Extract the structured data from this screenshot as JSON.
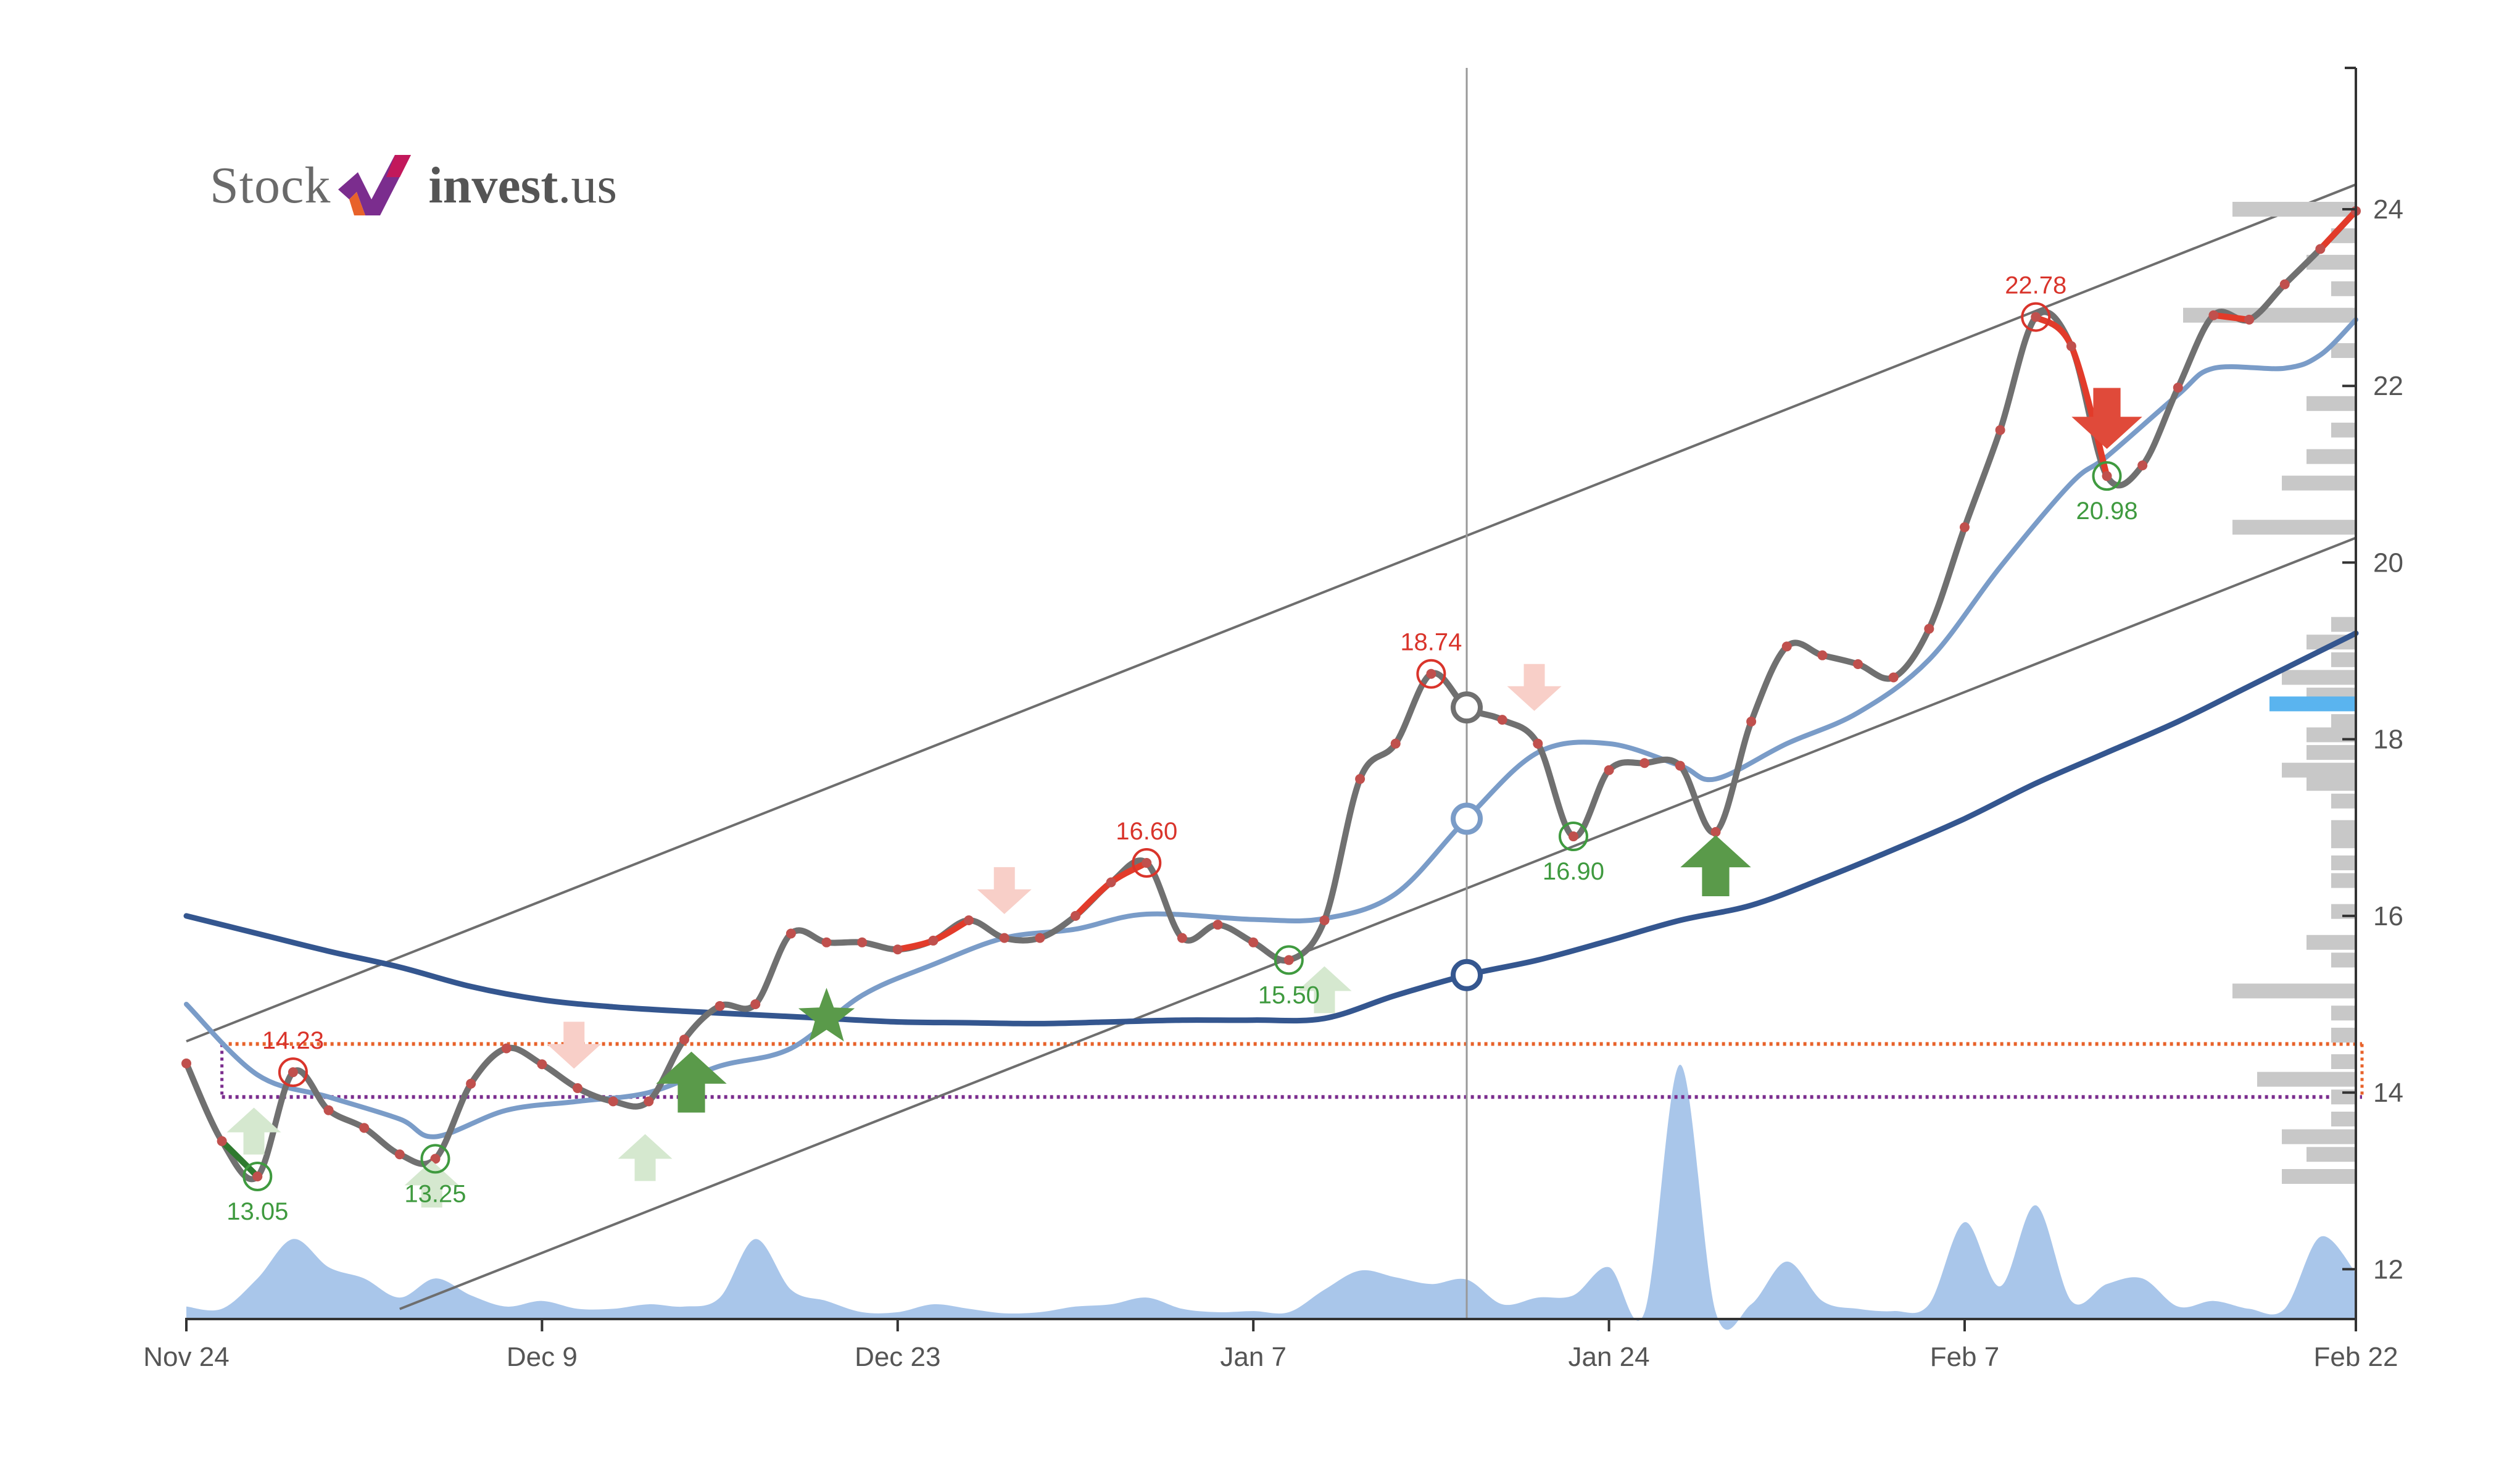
{
  "logo": {
    "word1": "Stock",
    "word2": "invest",
    "word3": ".us"
  },
  "colors": {
    "price_line": "#707070",
    "price_dot": "#c0504d",
    "red_segment": "#e23b2a",
    "short_ma": "#7a9cc8",
    "long_ma": "#34568f",
    "volume": "#a9c6ea",
    "channel": "#6e6e6e",
    "profile_bar": "#c8c8c8",
    "profile_highlight": "#5ab4ef",
    "support_orange": "#e8622a",
    "support_purple": "#7b2d8e",
    "buy": "#5a9a4a",
    "sell": "#e04a3a",
    "buy_faint": "#d5e8cf",
    "sell_faint": "#f8cfc8",
    "top_label": "#d9342b",
    "bottom_label": "#3f9a3f"
  },
  "chart_data": {
    "type": "line",
    "x_labels": [
      "Nov 24",
      "Dec 9",
      "Dec 23",
      "Jan 7",
      "Jan 24",
      "Feb 7",
      "Feb 22"
    ],
    "y_ticks": [
      "12",
      "14",
      "16",
      "18",
      "20",
      "22",
      "24"
    ],
    "ylim": [
      11.45,
      25.6
    ],
    "xlim": [
      0,
      61
    ],
    "x_label_positions": [
      0,
      10,
      20,
      30,
      40,
      50,
      61
    ],
    "series": [
      {
        "values": [
          [
            0,
            14.33
          ],
          [
            1,
            13.45
          ],
          [
            2,
            13.05
          ],
          [
            3,
            14.23
          ],
          [
            4,
            13.8
          ],
          [
            5,
            13.6
          ],
          [
            6,
            13.3
          ],
          [
            7,
            13.25
          ],
          [
            8,
            14.1
          ],
          [
            9,
            14.5
          ],
          [
            10,
            14.32
          ],
          [
            11,
            14.05
          ],
          [
            12,
            13.9
          ],
          [
            13,
            13.9
          ],
          [
            14,
            14.6
          ],
          [
            15,
            14.98
          ],
          [
            16,
            15.0
          ],
          [
            17,
            15.8
          ],
          [
            18,
            15.7
          ],
          [
            19,
            15.7
          ],
          [
            20,
            15.62
          ],
          [
            21,
            15.72
          ],
          [
            22,
            15.95
          ],
          [
            23,
            15.75
          ],
          [
            24,
            15.75
          ],
          [
            25,
            16.0
          ],
          [
            26,
            16.38
          ],
          [
            27,
            16.6
          ],
          [
            28,
            15.75
          ],
          [
            29,
            15.9
          ],
          [
            30,
            15.7
          ],
          [
            31,
            15.5
          ],
          [
            32,
            15.95
          ],
          [
            33,
            17.55
          ],
          [
            34,
            17.95
          ],
          [
            35,
            18.74
          ],
          [
            36,
            18.36
          ],
          [
            37,
            18.22
          ],
          [
            38,
            17.95
          ],
          [
            39,
            16.9
          ],
          [
            40,
            17.65
          ],
          [
            41,
            17.73
          ],
          [
            42,
            17.7
          ],
          [
            43,
            16.95
          ],
          [
            44,
            18.2
          ],
          [
            45,
            19.05
          ],
          [
            46,
            18.95
          ],
          [
            47,
            18.85
          ],
          [
            48,
            18.7
          ],
          [
            49,
            19.25
          ],
          [
            50,
            20.4
          ],
          [
            51,
            21.5
          ],
          [
            52,
            22.78
          ],
          [
            53,
            22.45
          ],
          [
            54,
            20.98
          ],
          [
            55,
            21.1
          ],
          [
            56,
            21.98
          ],
          [
            57,
            22.8
          ],
          [
            58,
            22.75
          ],
          [
            59,
            23.15
          ],
          [
            60,
            23.55
          ],
          [
            61,
            23.98
          ]
        ]
      },
      {
        "values": [
          [
            0,
            15.0
          ],
          [
            2,
            14.2
          ],
          [
            4,
            13.95
          ],
          [
            6,
            13.7
          ],
          [
            7,
            13.5
          ],
          [
            9,
            13.8
          ],
          [
            11,
            13.9
          ],
          [
            13,
            14.0
          ],
          [
            15,
            14.3
          ],
          [
            17,
            14.5
          ],
          [
            19,
            15.1
          ],
          [
            21,
            15.45
          ],
          [
            23,
            15.75
          ],
          [
            25,
            15.85
          ],
          [
            27,
            16.02
          ],
          [
            30,
            15.96
          ],
          [
            32,
            15.97
          ],
          [
            34,
            16.25
          ],
          [
            36,
            17.1
          ],
          [
            38,
            17.85
          ],
          [
            40,
            17.95
          ],
          [
            42,
            17.7
          ],
          [
            43,
            17.55
          ],
          [
            45,
            17.95
          ],
          [
            47,
            18.3
          ],
          [
            49,
            18.9
          ],
          [
            51,
            19.95
          ],
          [
            53,
            20.9
          ],
          [
            54,
            21.2
          ],
          [
            56,
            21.9
          ],
          [
            57,
            22.2
          ],
          [
            59,
            22.2
          ],
          [
            60,
            22.35
          ],
          [
            61,
            22.75
          ]
        ]
      },
      {
        "values": [
          [
            0,
            16.0
          ],
          [
            2,
            15.8
          ],
          [
            4,
            15.6
          ],
          [
            6,
            15.42
          ],
          [
            8,
            15.2
          ],
          [
            10,
            15.05
          ],
          [
            12,
            14.97
          ],
          [
            14,
            14.92
          ],
          [
            16,
            14.88
          ],
          [
            18,
            14.84
          ],
          [
            20,
            14.8
          ],
          [
            22,
            14.79
          ],
          [
            24,
            14.78
          ],
          [
            26,
            14.8
          ],
          [
            28,
            14.82
          ],
          [
            30,
            14.82
          ],
          [
            32,
            14.84
          ],
          [
            34,
            15.1
          ],
          [
            36,
            15.33
          ],
          [
            38,
            15.5
          ],
          [
            40,
            15.72
          ],
          [
            42,
            15.95
          ],
          [
            44,
            16.12
          ],
          [
            46,
            16.42
          ],
          [
            48,
            16.75
          ],
          [
            50,
            17.1
          ],
          [
            52,
            17.5
          ],
          [
            54,
            17.85
          ],
          [
            56,
            18.2
          ],
          [
            58,
            18.6
          ],
          [
            60,
            19.0
          ],
          [
            61,
            19.2
          ]
        ]
      }
    ],
    "red_segments": [
      [
        20,
        22
      ],
      [
        25,
        27
      ],
      [
        52,
        54
      ],
      [
        57,
        58
      ],
      [
        60,
        61
      ]
    ],
    "volume": [
      [
        0,
        0.1
      ],
      [
        1,
        0.08
      ],
      [
        2,
        0.35
      ],
      [
        3,
        0.7
      ],
      [
        4,
        0.45
      ],
      [
        5,
        0.35
      ],
      [
        6,
        0.18
      ],
      [
        7,
        0.35
      ],
      [
        8,
        0.2
      ],
      [
        9,
        0.1
      ],
      [
        10,
        0.15
      ],
      [
        11,
        0.08
      ],
      [
        12,
        0.08
      ],
      [
        13,
        0.12
      ],
      [
        14,
        0.1
      ],
      [
        15,
        0.18
      ],
      [
        16,
        0.7
      ],
      [
        17,
        0.25
      ],
      [
        18,
        0.15
      ],
      [
        19,
        0.05
      ],
      [
        20,
        0.05
      ],
      [
        21,
        0.12
      ],
      [
        22,
        0.08
      ],
      [
        23,
        0.04
      ],
      [
        24,
        0.05
      ],
      [
        25,
        0.1
      ],
      [
        26,
        0.12
      ],
      [
        27,
        0.18
      ],
      [
        28,
        0.08
      ],
      [
        29,
        0.05
      ],
      [
        30,
        0.06
      ],
      [
        31,
        0.05
      ],
      [
        32,
        0.25
      ],
      [
        33,
        0.42
      ],
      [
        34,
        0.36
      ],
      [
        35,
        0.3
      ],
      [
        36,
        0.34
      ],
      [
        37,
        0.12
      ],
      [
        38,
        0.18
      ],
      [
        39,
        0.2
      ],
      [
        40,
        0.45
      ],
      [
        41,
        0.05
      ],
      [
        42,
        2.25
      ],
      [
        43,
        0.05
      ],
      [
        44,
        0.12
      ],
      [
        45,
        0.5
      ],
      [
        46,
        0.15
      ],
      [
        47,
        0.08
      ],
      [
        48,
        0.06
      ],
      [
        49,
        0.12
      ],
      [
        50,
        0.85
      ],
      [
        51,
        0.28
      ],
      [
        52,
        1.0
      ],
      [
        53,
        0.15
      ],
      [
        54,
        0.3
      ],
      [
        55,
        0.35
      ],
      [
        56,
        0.1
      ],
      [
        57,
        0.15
      ],
      [
        58,
        0.08
      ],
      [
        59,
        0.08
      ],
      [
        60,
        0.72
      ],
      [
        61,
        0.4
      ]
    ],
    "channel": {
      "upper": [
        [
          0,
          14.58
        ],
        [
          61,
          24.28
        ]
      ],
      "lower": [
        [
          6,
          11.55
        ],
        [
          61,
          20.28
        ]
      ]
    },
    "support_lines": [
      {
        "y": 14.55,
        "color": "#e8622a"
      },
      {
        "y": 13.95,
        "color": "#7b2d8e"
      }
    ],
    "vertical_line_x": 36,
    "annotations": [
      {
        "x": 2,
        "y": 13.05,
        "label": "13.05",
        "kind": "bottom"
      },
      {
        "x": 3,
        "y": 14.23,
        "label": "14.23",
        "kind": "top"
      },
      {
        "x": 7,
        "y": 13.25,
        "label": "13.25",
        "kind": "bottom"
      },
      {
        "x": 27,
        "y": 16.6,
        "label": "16.60",
        "kind": "top"
      },
      {
        "x": 31,
        "y": 15.5,
        "label": "15.50",
        "kind": "bottom"
      },
      {
        "x": 35,
        "y": 18.74,
        "label": "18.74",
        "kind": "top"
      },
      {
        "x": 39,
        "y": 16.9,
        "label": "16.90",
        "kind": "bottom"
      },
      {
        "x": 52,
        "y": 22.78,
        "label": "22.78",
        "kind": "top"
      },
      {
        "x": 54,
        "y": 20.98,
        "label": "20.98",
        "kind": "bottom"
      }
    ],
    "signals": [
      {
        "x": 1.9,
        "y": 13.55,
        "kind": "buy",
        "strength": "faint"
      },
      {
        "x": 6.9,
        "y": 12.95,
        "kind": "buy",
        "strength": "faint"
      },
      {
        "x": 12.9,
        "y": 13.25,
        "kind": "buy",
        "strength": "faint"
      },
      {
        "x": 14.2,
        "y": 14.1,
        "kind": "buy",
        "strength": "strong"
      },
      {
        "x": 32.0,
        "y": 15.15,
        "kind": "buy",
        "strength": "faint"
      },
      {
        "x": 43.0,
        "y": 16.55,
        "kind": "buy",
        "strength": "strong"
      },
      {
        "x": 10.9,
        "y": 14.55,
        "kind": "sell",
        "strength": "faint"
      },
      {
        "x": 23.0,
        "y": 16.3,
        "kind": "sell",
        "strength": "faint"
      },
      {
        "x": 37.9,
        "y": 18.6,
        "kind": "sell",
        "strength": "faint"
      },
      {
        "x": 54.0,
        "y": 21.65,
        "kind": "sell",
        "strength": "strong"
      }
    ],
    "stars": [
      {
        "x": 18,
        "y": 14.85
      }
    ],
    "marker_circles": [
      {
        "x": 36,
        "y": 18.36,
        "color": "#707070"
      },
      {
        "x": 36,
        "y": 17.1,
        "color": "#7a9cc8"
      },
      {
        "x": 36,
        "y": 15.33,
        "color": "#34568f"
      }
    ],
    "volume_profile": [
      [
        24.0,
        5
      ],
      [
        23.7,
        1
      ],
      [
        23.4,
        2
      ],
      [
        23.1,
        1
      ],
      [
        22.8,
        7
      ],
      [
        22.4,
        1
      ],
      [
        21.8,
        2
      ],
      [
        21.5,
        1
      ],
      [
        21.2,
        2
      ],
      [
        20.9,
        3
      ],
      [
        20.4,
        5
      ],
      [
        19.3,
        1
      ],
      [
        19.1,
        2
      ],
      [
        18.9,
        1
      ],
      [
        18.7,
        3
      ],
      [
        18.5,
        2
      ],
      [
        18.2,
        1
      ],
      [
        18.05,
        2
      ],
      [
        17.85,
        2
      ],
      [
        17.65,
        3
      ],
      [
        17.5,
        2
      ],
      [
        17.3,
        1
      ],
      [
        17.0,
        1
      ],
      [
        16.85,
        1
      ],
      [
        16.6,
        1
      ],
      [
        16.4,
        1
      ],
      [
        16.05,
        1
      ],
      [
        15.7,
        2
      ],
      [
        15.5,
        1
      ],
      [
        15.15,
        5
      ],
      [
        14.9,
        1
      ],
      [
        14.65,
        1
      ],
      [
        14.35,
        1
      ],
      [
        14.15,
        4
      ],
      [
        13.95,
        1
      ],
      [
        13.7,
        1
      ],
      [
        13.5,
        3
      ],
      [
        13.3,
        2
      ],
      [
        13.05,
        3
      ]
    ],
    "current_price_marker": {
      "y": 18.4
    }
  }
}
